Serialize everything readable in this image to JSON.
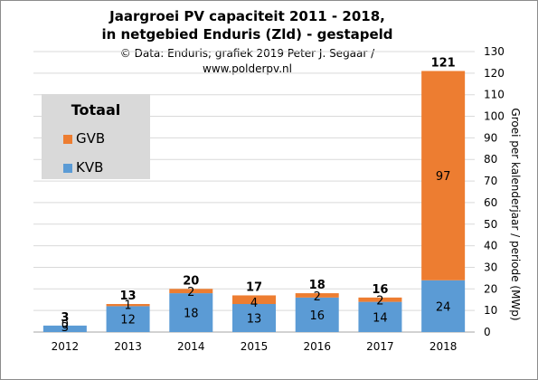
{
  "chart_data": {
    "type": "bar",
    "stacked": true,
    "title_line1": "Jaargroei PV capaciteit  2011 - 2018,",
    "title_line2": "in netgebied Enduris  (Zld) - gestapeld",
    "subtitle_line1": "© Data: Enduris;  grafiek 2019 Peter J. Segaar /",
    "subtitle_line2": "www.polderpv.nl",
    "ylabel": "Groei per kalenderjaar / periode (MWp)",
    "ylim": [
      0,
      130
    ],
    "yticks": [
      0,
      10,
      20,
      30,
      40,
      50,
      60,
      70,
      80,
      90,
      100,
      110,
      120,
      130
    ],
    "grid": true,
    "legend_title": "Totaal",
    "legend_position": "top-left",
    "categories": [
      "2012",
      "2013",
      "2014",
      "2015",
      "2016",
      "2017",
      "2018"
    ],
    "series": [
      {
        "name": "KVB",
        "color": "#5b9bd5",
        "values": [
          3,
          12,
          18,
          13,
          16,
          14,
          24
        ],
        "labels": [
          "3",
          "12",
          "18",
          "13",
          "16",
          "14",
          "24"
        ]
      },
      {
        "name": "GVB",
        "color": "#ed7d31",
        "values": [
          0,
          1,
          2,
          4,
          2,
          2,
          97
        ],
        "labels": [
          "0",
          "1",
          "2",
          "4",
          "2",
          "2",
          "97"
        ]
      }
    ],
    "totals": [
      "3",
      "13",
      "20",
      "17",
      "18",
      "16",
      "121"
    ]
  }
}
